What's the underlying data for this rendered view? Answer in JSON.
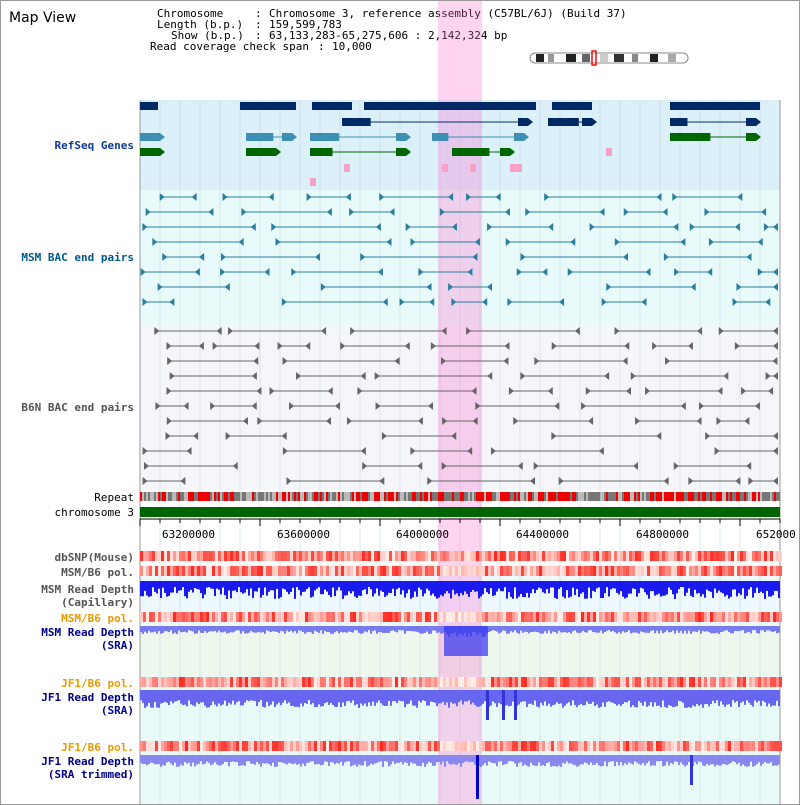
{
  "header": {
    "title": "Map View",
    "chromosome_key": "Chromosome",
    "chromosome_value": "Chromosome 3, reference assembly (C57BL/6J) (Build 37)",
    "length_key": "Length (b.p.)",
    "length_value": "159,599,783",
    "show_key": "Show (b.p.)",
    "show_value": "63,133,283-65,275,606 : 2,142,324 bp",
    "coverage_key": "Read coverage check span",
    "coverage_value": "10,000"
  },
  "tracks": {
    "refseq": "RefSeq Genes",
    "msm_bac": "MSM BAC end pairs",
    "b6n_bac": "B6N BAC end pairs",
    "repeat": "Repeat",
    "chromosome": "chromosome 3",
    "dbsnp": "dbSNP(Mouse)",
    "msm_b6_pol_1": "MSM/B6 pol.",
    "msm_depth_cap_1": "MSM Read Depth",
    "msm_depth_cap_2": "(Capillary)",
    "msm_b6_pol_2": "MSM/B6 pol.",
    "msm_depth_sra_1": "MSM Read Depth",
    "msm_depth_sra_2": "(SRA)",
    "jf1_b6_pol_1": "JF1/B6 pol.",
    "jf1_depth_sra_1": "JF1 Read Depth",
    "jf1_depth_sra_2": "(SRA)",
    "jf1_b6_pol_2": "JF1/B6 pol.",
    "jf1_depth_trim_1": "JF1 Read Depth",
    "jf1_depth_trim_2": "(SRA trimmed)"
  },
  "axis": {
    "ticks": [
      "63200000",
      "63600000",
      "64000000",
      "64400000",
      "64800000",
      "652000"
    ]
  },
  "colors": {
    "refseq_dark": "#002a66",
    "refseq_light": "#3f8fb5",
    "refseq_green": "#006600",
    "highlight": "#ff66cc",
    "depth_blue": "#0000ee",
    "repeat_red": "#ee0000",
    "chrom_green": "#006400"
  }
}
